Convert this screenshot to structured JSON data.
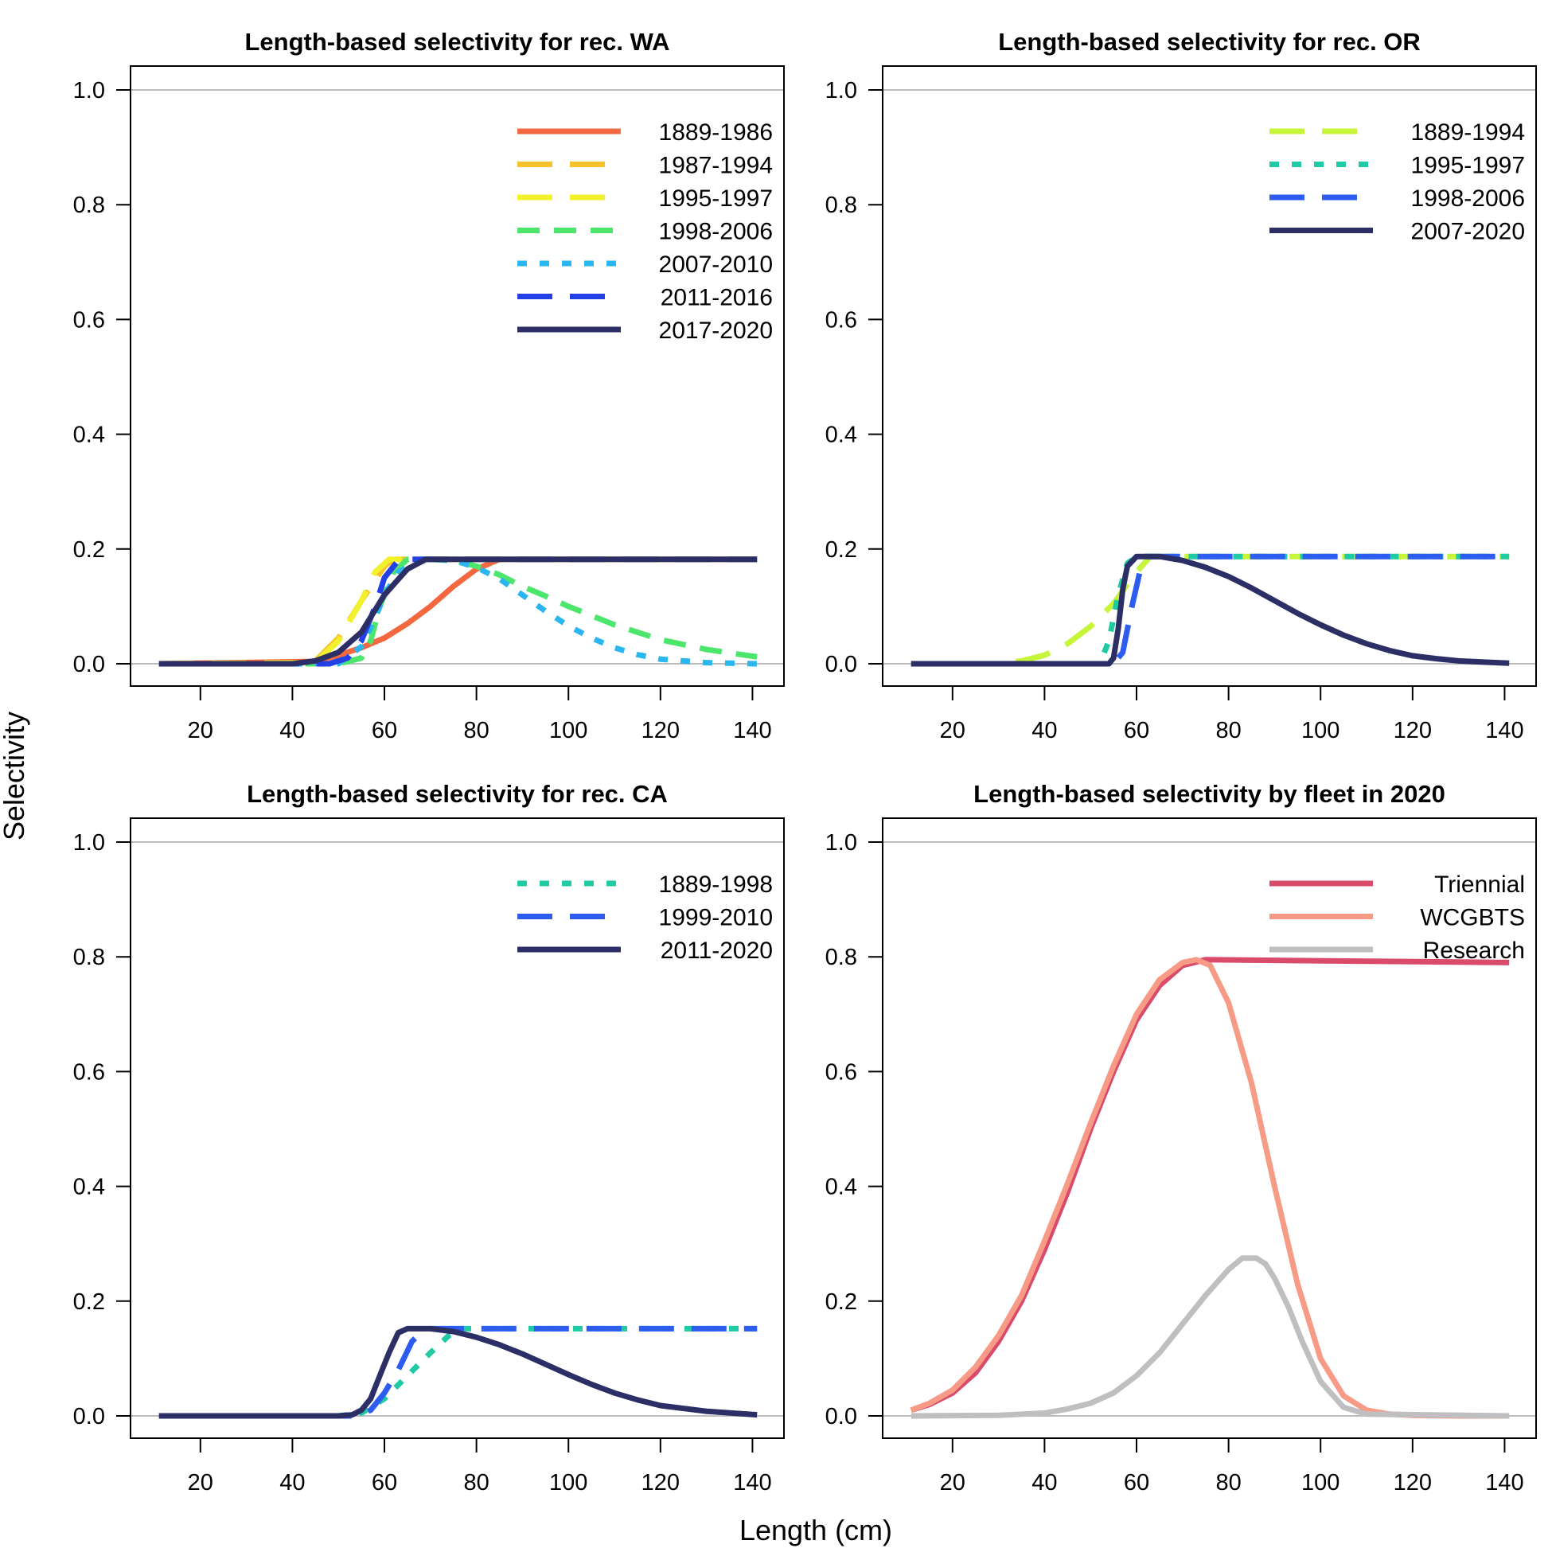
{
  "figure": {
    "xlabel": "Length (cm)",
    "ylabel": "Selectivity"
  },
  "chart_data": [
    {
      "type": "line",
      "title": "Length-based selectivity for rec. WA",
      "xlim": [
        10,
        142
      ],
      "ylim": [
        0,
        1.0
      ],
      "xticks": [
        20,
        40,
        60,
        80,
        100,
        120,
        140
      ],
      "yticks": [
        0.0,
        0.2,
        0.4,
        0.6,
        0.8,
        1.0
      ],
      "ytick_labels": [
        "0.0",
        "0.2",
        "0.4",
        "0.6",
        "0.8",
        "1.0"
      ],
      "reference_lines": [
        0,
        1
      ],
      "legend_position": "top-right",
      "series": [
        {
          "name": "1889-1986",
          "color": "#f4683f",
          "dash": "solid",
          "x": [
            11,
            45,
            50,
            55,
            60,
            65,
            70,
            75,
            80,
            85,
            141
          ],
          "y": [
            0,
            0.004,
            0.015,
            0.028,
            0.045,
            0.07,
            0.1,
            0.135,
            0.165,
            0.182,
            0.182
          ]
        },
        {
          "name": "1987-1994",
          "color": "#f9c22d",
          "dash": "long",
          "x": [
            11,
            40,
            45,
            50,
            55,
            60,
            62,
            141
          ],
          "y": [
            0,
            0,
            0.005,
            0.045,
            0.11,
            0.17,
            0.182,
            0.182
          ]
        },
        {
          "name": "1995-1997",
          "color": "#f2f22c",
          "dash": "long",
          "x": [
            11,
            45,
            50,
            55,
            58,
            61,
            141
          ],
          "y": [
            0,
            0.002,
            0.04,
            0.11,
            0.16,
            0.182,
            0.182
          ]
        },
        {
          "name": "1998-2006",
          "color": "#4be66b",
          "dash": "medium",
          "x": [
            11,
            50,
            55,
            57,
            59,
            62,
            65,
            70,
            75,
            80,
            85,
            90,
            95,
            100,
            110,
            120,
            130,
            141
          ],
          "y": [
            0,
            0,
            0.01,
            0.04,
            0.1,
            0.16,
            0.182,
            0.182,
            0.18,
            0.17,
            0.155,
            0.135,
            0.118,
            0.1,
            0.068,
            0.042,
            0.025,
            0.012
          ]
        },
        {
          "name": "2007-2010",
          "color": "#2ab6ef",
          "dash": "short",
          "x": [
            11,
            50,
            55,
            58,
            60,
            63,
            68,
            72,
            76,
            80,
            85,
            90,
            95,
            100,
            105,
            110,
            115,
            120,
            130,
            141
          ],
          "y": [
            0,
            0,
            0.03,
            0.08,
            0.12,
            0.16,
            0.182,
            0.182,
            0.178,
            0.168,
            0.148,
            0.12,
            0.092,
            0.066,
            0.045,
            0.028,
            0.016,
            0.008,
            0.002,
            0
          ]
        },
        {
          "name": "2011-2016",
          "color": "#2240e5",
          "dash": "long",
          "x": [
            11,
            48,
            52,
            55,
            58,
            60,
            63,
            66,
            141
          ],
          "y": [
            0,
            0,
            0.01,
            0.04,
            0.1,
            0.15,
            0.18,
            0.182,
            0.182
          ]
        },
        {
          "name": "2017-2020",
          "color": "#2c2f66",
          "dash": "solid",
          "x": [
            11,
            40,
            45,
            50,
            55,
            60,
            65,
            69,
            141
          ],
          "y": [
            0,
            0,
            0.005,
            0.02,
            0.055,
            0.12,
            0.165,
            0.182,
            0.182
          ]
        }
      ]
    },
    {
      "type": "line",
      "title": "Length-based selectivity for rec. OR",
      "xlim": [
        10,
        142
      ],
      "ylim": [
        0,
        1.0
      ],
      "xticks": [
        20,
        40,
        60,
        80,
        100,
        120,
        140
      ],
      "yticks": [
        0.0,
        0.2,
        0.4,
        0.6,
        0.8,
        1.0
      ],
      "ytick_labels": [
        "0.0",
        "0.2",
        "0.4",
        "0.6",
        "0.8",
        "1.0"
      ],
      "reference_lines": [
        0,
        1
      ],
      "legend_position": "top-right",
      "series": [
        {
          "name": "1889-1994",
          "color": "#c6f53a",
          "dash": "long",
          "x": [
            11,
            30,
            35,
            40,
            45,
            50,
            55,
            60,
            63,
            141
          ],
          "y": [
            0,
            0,
            0.005,
            0.015,
            0.035,
            0.065,
            0.105,
            0.16,
            0.187,
            0.187
          ]
        },
        {
          "name": "1995-1997",
          "color": "#1fcaa4",
          "dash": "short",
          "x": [
            11,
            52,
            54,
            56,
            58,
            60,
            141
          ],
          "y": [
            0,
            0,
            0.04,
            0.12,
            0.175,
            0.187,
            0.187
          ]
        },
        {
          "name": "1998-2006",
          "color": "#2d5cf0",
          "dash": "long",
          "x": [
            11,
            55,
            57,
            59,
            61,
            62,
            141
          ],
          "y": [
            0,
            0,
            0.02,
            0.1,
            0.17,
            0.187,
            0.187
          ]
        },
        {
          "name": "2007-2020",
          "color": "#2c2f66",
          "dash": "solid",
          "x": [
            11,
            54,
            55,
            56,
            57,
            58,
            60,
            65,
            70,
            75,
            80,
            85,
            90,
            95,
            100,
            105,
            110,
            115,
            120,
            125,
            130,
            135,
            141
          ],
          "y": [
            0,
            0,
            0.01,
            0.06,
            0.13,
            0.17,
            0.187,
            0.187,
            0.18,
            0.168,
            0.152,
            0.132,
            0.11,
            0.088,
            0.068,
            0.05,
            0.035,
            0.023,
            0.014,
            0.009,
            0.005,
            0.003,
            0.001
          ]
        }
      ]
    },
    {
      "type": "line",
      "title": "Length-based selectivity for rec. CA",
      "xlim": [
        10,
        142
      ],
      "ylim": [
        0,
        1.0
      ],
      "xticks": [
        20,
        40,
        60,
        80,
        100,
        120,
        140
      ],
      "yticks": [
        0.0,
        0.2,
        0.4,
        0.6,
        0.8,
        1.0
      ],
      "ytick_labels": [
        "0.0",
        "0.2",
        "0.4",
        "0.6",
        "0.8",
        "1.0"
      ],
      "reference_lines": [
        0,
        1
      ],
      "legend_position": "top-right",
      "series": [
        {
          "name": "1889-1998",
          "color": "#1fcaa4",
          "dash": "short",
          "x": [
            11,
            50,
            55,
            60,
            65,
            70,
            74,
            77,
            141
          ],
          "y": [
            0,
            0,
            0.005,
            0.03,
            0.07,
            0.11,
            0.14,
            0.152,
            0.152
          ]
        },
        {
          "name": "1999-2010",
          "color": "#2d5cf0",
          "dash": "long",
          "x": [
            11,
            54,
            57,
            60,
            63,
            66,
            69,
            141
          ],
          "y": [
            0,
            0,
            0.01,
            0.04,
            0.08,
            0.13,
            0.152,
            0.152
          ]
        },
        {
          "name": "2011-2020",
          "color": "#2c2f66",
          "dash": "solid",
          "x": [
            11,
            50,
            53,
            55,
            57,
            59,
            61,
            63,
            65,
            70,
            75,
            80,
            85,
            90,
            95,
            100,
            105,
            110,
            115,
            120,
            130,
            141
          ],
          "y": [
            0,
            0,
            0.002,
            0.01,
            0.03,
            0.07,
            0.11,
            0.145,
            0.152,
            0.152,
            0.147,
            0.137,
            0.124,
            0.108,
            0.09,
            0.072,
            0.055,
            0.04,
            0.028,
            0.018,
            0.008,
            0.002
          ]
        }
      ]
    },
    {
      "type": "line",
      "title": "Length-based selectivity by fleet in 2020",
      "xlim": [
        10,
        142
      ],
      "ylim": [
        0,
        1.0
      ],
      "xticks": [
        20,
        40,
        60,
        80,
        100,
        120,
        140
      ],
      "yticks": [
        0.0,
        0.2,
        0.4,
        0.6,
        0.8,
        1.0
      ],
      "ytick_labels": [
        "0.0",
        "0.2",
        "0.4",
        "0.6",
        "0.8",
        "1.0"
      ],
      "reference_lines": [
        0,
        1
      ],
      "legend_position": "top-right",
      "series": [
        {
          "name": "Triennial",
          "color": "#d94a6b",
          "dash": "solid",
          "x": [
            11,
            15,
            20,
            25,
            30,
            35,
            40,
            45,
            50,
            55,
            60,
            65,
            70,
            75,
            141
          ],
          "y": [
            0.01,
            0.02,
            0.04,
            0.075,
            0.13,
            0.2,
            0.29,
            0.39,
            0.5,
            0.6,
            0.69,
            0.75,
            0.785,
            0.795,
            0.79
          ]
        },
        {
          "name": "WCGBTS",
          "color": "#f79a86",
          "dash": "solid",
          "x": [
            11,
            15,
            20,
            25,
            30,
            35,
            40,
            45,
            50,
            55,
            60,
            65,
            70,
            73,
            76,
            80,
            85,
            90,
            95,
            100,
            105,
            110,
            115,
            120,
            130,
            141
          ],
          "y": [
            0.01,
            0.022,
            0.045,
            0.085,
            0.14,
            0.21,
            0.305,
            0.405,
            0.51,
            0.61,
            0.7,
            0.76,
            0.79,
            0.795,
            0.785,
            0.72,
            0.58,
            0.4,
            0.23,
            0.1,
            0.035,
            0.01,
            0.003,
            0.001,
            0,
            0
          ]
        },
        {
          "name": "Research",
          "color": "#bfbfc1",
          "dash": "solid",
          "x": [
            11,
            30,
            40,
            45,
            50,
            55,
            60,
            65,
            70,
            75,
            80,
            83,
            86,
            88,
            90,
            93,
            96,
            100,
            105,
            110,
            141
          ],
          "y": [
            0,
            0.001,
            0.005,
            0.012,
            0.022,
            0.04,
            0.07,
            0.11,
            0.16,
            0.21,
            0.255,
            0.275,
            0.275,
            0.265,
            0.24,
            0.19,
            0.13,
            0.06,
            0.015,
            0.003,
            0
          ]
        }
      ]
    }
  ]
}
